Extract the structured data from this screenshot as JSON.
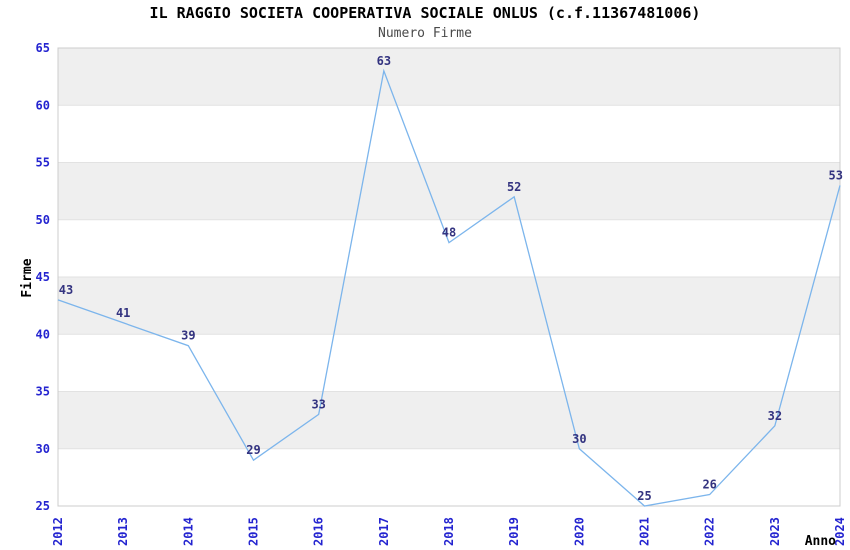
{
  "chart_data": {
    "type": "line",
    "title": "IL RAGGIO SOCIETA COOPERATIVA SOCIALE ONLUS (c.f.11367481006)",
    "subtitle": "Numero Firme",
    "xlabel": "Anno",
    "ylabel": "Firme",
    "categories": [
      "2012",
      "2013",
      "2014",
      "2015",
      "2016",
      "2017",
      "2018",
      "2019",
      "2020",
      "2021",
      "2022",
      "2023",
      "2024"
    ],
    "values": [
      43,
      41,
      39,
      29,
      33,
      63,
      48,
      52,
      30,
      25,
      26,
      32,
      53
    ],
    "ylim": [
      25,
      65
    ],
    "ytick_step": 5,
    "yticks": [
      25,
      30,
      35,
      40,
      45,
      50,
      55,
      60,
      65
    ],
    "grid": "alternating-horizontal-bands",
    "legend": "none",
    "x_tick_rotation": -90,
    "data_labels_shown": true,
    "colors": {
      "line": "#7cb5ec",
      "tick_labels": "#2424d0",
      "data_labels": "#333380",
      "band_gray": "#efefef",
      "band_white": "#ffffff",
      "gridline": "#e2e2e2",
      "plot_border": "#cccccc",
      "title": "#000000",
      "subtitle": "#4a4a4a",
      "axis_title": "#000000"
    }
  }
}
